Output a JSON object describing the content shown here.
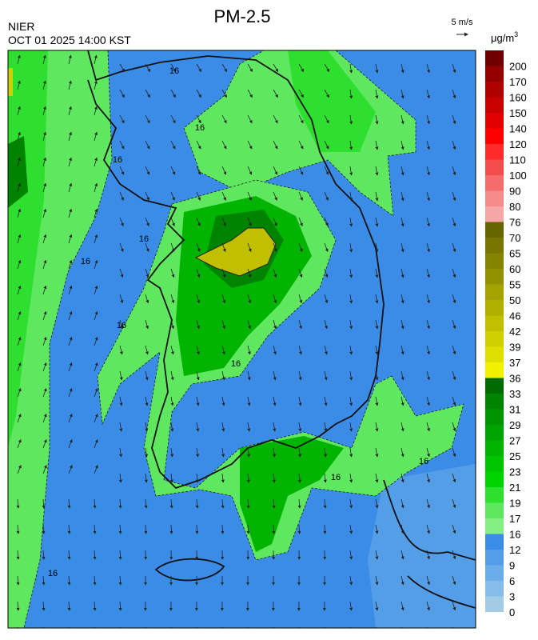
{
  "header": {
    "title": "PM-2.5",
    "agency": "NIER",
    "time": "OCT 01 2025 14:00 KST",
    "wind_scale": "5 m/s"
  },
  "colorbar": {
    "unit": {
      "base": "μg/m",
      "exponent": "3"
    },
    "labels": [
      "0",
      "3",
      "6",
      "9",
      "12",
      "16",
      "17",
      "19",
      "21",
      "23",
      "25",
      "27",
      "29",
      "31",
      "33",
      "36",
      "37",
      "39",
      "42",
      "46",
      "50",
      "55",
      "60",
      "65",
      "70",
      "76",
      "80",
      "90",
      "100",
      "110",
      "120",
      "140",
      "150",
      "160",
      "170",
      "200"
    ],
    "colors": [
      "#a3cbe6",
      "#86bce9",
      "#6badea",
      "#549ee8",
      "#3a8ce6",
      "#84f084",
      "#5fe85f",
      "#2fdf2f",
      "#00d400",
      "#00c400",
      "#00b400",
      "#00a400",
      "#009400",
      "#008400",
      "#006c00",
      "#f2f200",
      "#e0e000",
      "#d0d000",
      "#c0c000",
      "#b0b000",
      "#a2a200",
      "#929200",
      "#848400",
      "#767600",
      "#666600",
      "#f5a6a6",
      "#f58a8a",
      "#f46c6c",
      "#f44c4c",
      "#ff2a2a",
      "#ff0000",
      "#e00000",
      "#c80000",
      "#b00000",
      "#940000",
      "#700000"
    ]
  },
  "map": {
    "contour_labels": [
      "16",
      "16",
      "16",
      "16",
      "16",
      "16",
      "16",
      "16",
      "16",
      "16"
    ]
  }
}
